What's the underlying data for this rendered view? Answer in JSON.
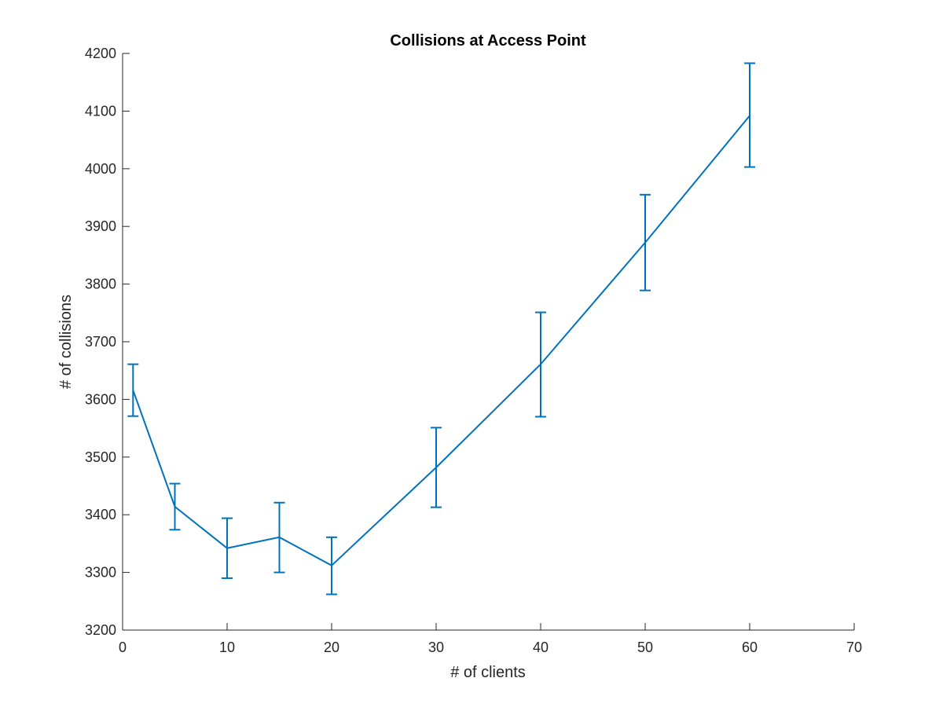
{
  "chart_data": {
    "type": "line",
    "title": "Collisions at Access Point",
    "xlabel": "# of clients",
    "ylabel": "# of collisions",
    "xlim": [
      0,
      70
    ],
    "ylim": [
      3200,
      4200
    ],
    "xticks": [
      0,
      10,
      20,
      30,
      40,
      50,
      60,
      70
    ],
    "yticks": [
      3200,
      3300,
      3400,
      3500,
      3600,
      3700,
      3800,
      3900,
      4000,
      4100,
      4200
    ],
    "grid": false,
    "series": [
      {
        "color": "#0072BD",
        "x": [
          1,
          5,
          10,
          15,
          20,
          30,
          40,
          50,
          60
        ],
        "y": [
          3616,
          3414,
          3342,
          3361,
          3312,
          3482,
          3661,
          3872,
          4092
        ],
        "err_low": [
          3571,
          3374,
          3290,
          3300,
          3262,
          3413,
          3570,
          3789,
          4003
        ],
        "err_high": [
          3661,
          3454,
          3394,
          3421,
          3361,
          3551,
          3751,
          3955,
          4183
        ]
      }
    ]
  }
}
